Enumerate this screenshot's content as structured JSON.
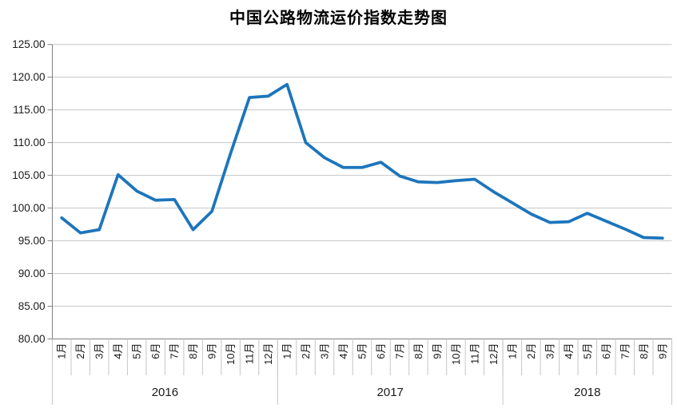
{
  "chart_data": {
    "type": "line",
    "title": "中国公路物流运价指数走势图",
    "xlabel": "",
    "ylabel": "",
    "ylim": [
      80,
      125
    ],
    "ytick_step": 5,
    "ytick_labels": [
      "80.00",
      "85.00",
      "90.00",
      "95.00",
      "100.00",
      "105.00",
      "110.00",
      "115.00",
      "120.00",
      "125.00"
    ],
    "grid": true,
    "legend": "none",
    "x_axis": {
      "years": [
        {
          "label": "2016",
          "months": [
            "1月",
            "2月",
            "3月",
            "4月",
            "5月",
            "6月",
            "7月",
            "8月",
            "9月",
            "10月",
            "11月",
            "12月"
          ]
        },
        {
          "label": "2017",
          "months": [
            "1月",
            "2月",
            "3月",
            "4月",
            "5月",
            "6月",
            "7月",
            "8月",
            "9月",
            "10月",
            "11月",
            "12月"
          ]
        },
        {
          "label": "2018",
          "months": [
            "1月",
            "2月",
            "3月",
            "4月",
            "5月",
            "6月",
            "7月",
            "8月",
            "9月"
          ]
        }
      ]
    },
    "series": [
      {
        "name": "中国公路物流运价指数",
        "values": [
          98.5,
          96.2,
          96.7,
          105.1,
          102.6,
          101.2,
          101.3,
          96.7,
          99.5,
          108.4,
          116.9,
          117.1,
          118.9,
          110.0,
          107.7,
          106.2,
          106.2,
          107.0,
          104.9,
          104.0,
          103.9,
          104.2,
          104.4,
          102.5,
          100.8,
          99.1,
          97.8,
          97.9,
          99.2,
          98.0,
          96.8,
          95.5,
          95.4
        ]
      }
    ]
  },
  "colors": {
    "line": "#1C75BC",
    "grid": "#C6C6C6",
    "axis": "#808080",
    "label_text": "#1a1a1a",
    "title_text": "#000000",
    "background": "#FFFFFF"
  }
}
